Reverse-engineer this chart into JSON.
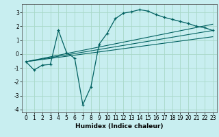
{
  "title": "",
  "xlabel": "Humidex (Indice chaleur)",
  "background_color": "#c8eef0",
  "grid_color": "#a8d8c8",
  "line_color": "#006060",
  "xlim": [
    -0.5,
    23.5
  ],
  "ylim": [
    -4.2,
    3.6
  ],
  "xticks": [
    0,
    1,
    2,
    3,
    4,
    5,
    6,
    7,
    8,
    9,
    10,
    11,
    12,
    13,
    14,
    15,
    16,
    17,
    18,
    19,
    20,
    21,
    22,
    23
  ],
  "yticks": [
    -4,
    -3,
    -2,
    -1,
    0,
    1,
    2,
    3
  ],
  "curve1_x": [
    0,
    1,
    2,
    3,
    4,
    5,
    6,
    7,
    8,
    9,
    10,
    11,
    12,
    13,
    14,
    15,
    16,
    17,
    18,
    19,
    20,
    21,
    22,
    23
  ],
  "curve1_y": [
    -0.55,
    -1.15,
    -0.8,
    -0.75,
    1.7,
    0.1,
    -0.3,
    -3.65,
    -2.35,
    0.7,
    1.5,
    2.55,
    2.95,
    3.05,
    3.2,
    3.1,
    2.85,
    2.65,
    2.5,
    2.35,
    2.2,
    2.0,
    1.9,
    1.7
  ],
  "line1_x": [
    0,
    23
  ],
  "line1_y": [
    -0.55,
    1.7
  ],
  "line2_x": [
    0,
    23
  ],
  "line2_y": [
    -0.55,
    2.15
  ],
  "line3_x": [
    0,
    23
  ],
  "line3_y": [
    -0.55,
    1.25
  ],
  "xlabel_fontsize": 6.5,
  "tick_fontsize": 5.5
}
